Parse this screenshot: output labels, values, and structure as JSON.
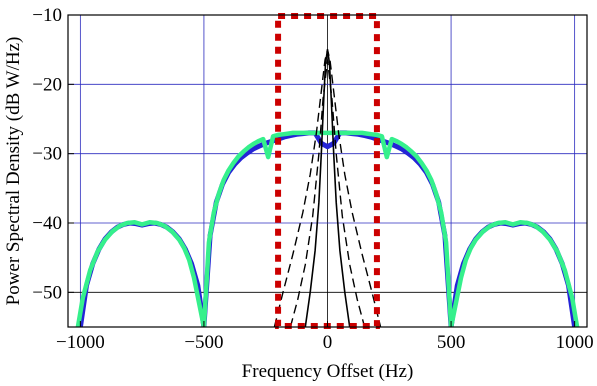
{
  "chart_data": {
    "type": "line",
    "title": "",
    "xlabel": "Frequency Offset (Hz)",
    "ylabel": "Power Spectral Density (dB W/Hz)",
    "xlim": [
      -1050,
      1050
    ],
    "ylim": [
      -55,
      -10
    ],
    "x_ticks": [
      -1000,
      -500,
      0,
      500,
      1000
    ],
    "x_tick_labels": [
      "−1000",
      "−500",
      "0",
      "500",
      "1000"
    ],
    "y_ticks": [
      -10,
      -20,
      -30,
      -40,
      -50
    ],
    "y_tick_labels": [
      "−10",
      "−20",
      "−30",
      "−40",
      "−50"
    ],
    "grid": true,
    "colors": {
      "grid_blue": "#2b2bbf",
      "grid_black": "#000000",
      "series_blue": "#2424d6",
      "series_green": "#35f08c",
      "series_black": "#000000",
      "box_red": "#cc0000"
    },
    "series": [
      {
        "style": "blue",
        "x": [
          -1000,
          -975,
          -950,
          -925,
          -900,
          -875,
          -850,
          -825,
          -800,
          -775,
          -750,
          -725,
          -700,
          -675,
          -650,
          -625,
          -600,
          -575,
          -550,
          -525,
          -500,
          -475,
          -450,
          -425,
          -400,
          -375,
          -350,
          -325,
          -300,
          -275,
          -250,
          -225,
          -200,
          -175,
          -150,
          -125,
          -100,
          -75,
          -50,
          -25,
          0,
          25,
          50,
          75,
          100,
          125,
          150,
          175,
          200,
          225,
          250,
          275,
          300,
          325,
          350,
          375,
          400,
          425,
          450,
          475,
          500,
          525,
          550,
          575,
          600,
          625,
          650,
          675,
          700,
          725,
          750,
          775,
          800,
          825,
          850,
          875,
          900,
          925,
          950,
          975,
          1000
        ],
        "y": [
          -55.0,
          -49.0,
          -45.9,
          -43.8,
          -42.3,
          -41.3,
          -40.6,
          -40.2,
          -40.0,
          -40.1,
          -40.3,
          -40.1,
          -40.0,
          -40.2,
          -40.6,
          -41.3,
          -42.3,
          -43.8,
          -45.9,
          -49.0,
          -55.0,
          -41.8,
          -37.0,
          -34.4,
          -32.7,
          -31.5,
          -30.6,
          -29.9,
          -29.3,
          -28.9,
          -28.5,
          -28.2,
          -27.9,
          -27.6,
          -27.4,
          -27.2,
          -27.1,
          -27.0,
          -27.0,
          -28.5,
          -29.0,
          -28.5,
          -27.0,
          -27.0,
          -27.1,
          -27.2,
          -27.4,
          -27.6,
          -27.9,
          -28.2,
          -28.5,
          -28.9,
          -29.3,
          -29.9,
          -30.6,
          -31.5,
          -32.7,
          -34.4,
          -37.0,
          -41.8,
          -55.0,
          -49.0,
          -45.9,
          -43.8,
          -42.3,
          -41.3,
          -40.6,
          -40.2,
          -40.0,
          -40.1,
          -40.3,
          -40.1,
          -40.0,
          -40.2,
          -40.6,
          -41.3,
          -42.3,
          -43.8,
          -45.9,
          -49.0,
          -55.0
        ]
      },
      {
        "style": "green",
        "x": [
          -1010,
          -990,
          -960,
          -930,
          -900,
          -870,
          -840,
          -810,
          -780,
          -750,
          -720,
          -690,
          -660,
          -630,
          -600,
          -580,
          -560,
          -540,
          -520,
          -500,
          -480,
          -460,
          -440,
          -420,
          -400,
          -380,
          -360,
          -340,
          -320,
          -300,
          -280,
          -260,
          -240,
          -220,
          -200,
          -180,
          -160,
          -140,
          -120,
          -100,
          -80,
          -60,
          -40,
          -20,
          0,
          20,
          40,
          60,
          80,
          100,
          120,
          140,
          160,
          180,
          200,
          220,
          240,
          260,
          280,
          300,
          320,
          340,
          360,
          380,
          400,
          420,
          440,
          460,
          480,
          500,
          520,
          540,
          560,
          580,
          600,
          630,
          660,
          690,
          720,
          750,
          780,
          810,
          840,
          870,
          900,
          930,
          960,
          990,
          1010
        ],
        "y": [
          -55.0,
          -50.8,
          -46.8,
          -44.1,
          -42.4,
          -41.2,
          -40.4,
          -40.0,
          -39.9,
          -40.2,
          -39.9,
          -40.0,
          -40.4,
          -41.2,
          -42.4,
          -43.6,
          -45.3,
          -47.9,
          -51.5,
          -55.0,
          -42.8,
          -38.5,
          -35.8,
          -33.8,
          -32.4,
          -31.3,
          -30.4,
          -29.7,
          -29.1,
          -28.6,
          -28.2,
          -27.9,
          -30.5,
          -27.5,
          -27.3,
          -27.2,
          -27.1,
          -27.0,
          -27.0,
          -27.0,
          -27.0,
          -27.0,
          -27.0,
          -27.0,
          -27.0,
          -27.0,
          -27.0,
          -27.0,
          -27.0,
          -27.0,
          -27.0,
          -27.0,
          -27.1,
          -27.2,
          -27.3,
          -27.5,
          -30.5,
          -27.9,
          -28.2,
          -28.6,
          -29.1,
          -29.7,
          -30.4,
          -31.3,
          -32.4,
          -33.8,
          -35.8,
          -38.5,
          -42.8,
          -55.0,
          -51.5,
          -47.9,
          -45.3,
          -43.6,
          -42.4,
          -41.2,
          -40.4,
          -40.0,
          -39.9,
          -40.2,
          -39.9,
          -40.0,
          -40.4,
          -41.2,
          -42.4,
          -44.1,
          -46.8,
          -50.8,
          -55.0
        ]
      },
      {
        "style": "black-solid",
        "x": [
          -90,
          -70,
          -50,
          -35,
          -25,
          -15,
          -8,
          0,
          8,
          15,
          25,
          35,
          50,
          70,
          90
        ],
        "y": [
          -55.0,
          -50.0,
          -44.0,
          -37.0,
          -30.0,
          -22.0,
          -17.0,
          -15.0,
          -17.0,
          -22.0,
          -30.0,
          -37.0,
          -44.0,
          -50.0,
          -55.0
        ]
      },
      {
        "style": "black-dashed",
        "x": [
          -215,
          -180,
          -140,
          -100,
          -70,
          -45,
          -25,
          -10,
          0,
          10,
          25,
          45,
          70,
          100,
          140,
          180,
          215
        ],
        "y": [
          -55.0,
          -50.0,
          -44.5,
          -38.5,
          -33.0,
          -27.0,
          -21.0,
          -16.5,
          -15.0,
          -16.5,
          -21.0,
          -27.0,
          -33.0,
          -38.5,
          -44.5,
          -50.0,
          -55.0
        ]
      },
      {
        "style": "black-dashed",
        "x": [
          -150,
          -120,
          -90,
          -60,
          -35,
          -18,
          0,
          18,
          35,
          60,
          90,
          120,
          150
        ],
        "y": [
          -55.0,
          -51.0,
          -46.0,
          -39.0,
          -30.0,
          -22.0,
          -16.5,
          -22.0,
          -30.0,
          -39.0,
          -46.0,
          -51.0,
          -55.0
        ]
      }
    ]
  }
}
